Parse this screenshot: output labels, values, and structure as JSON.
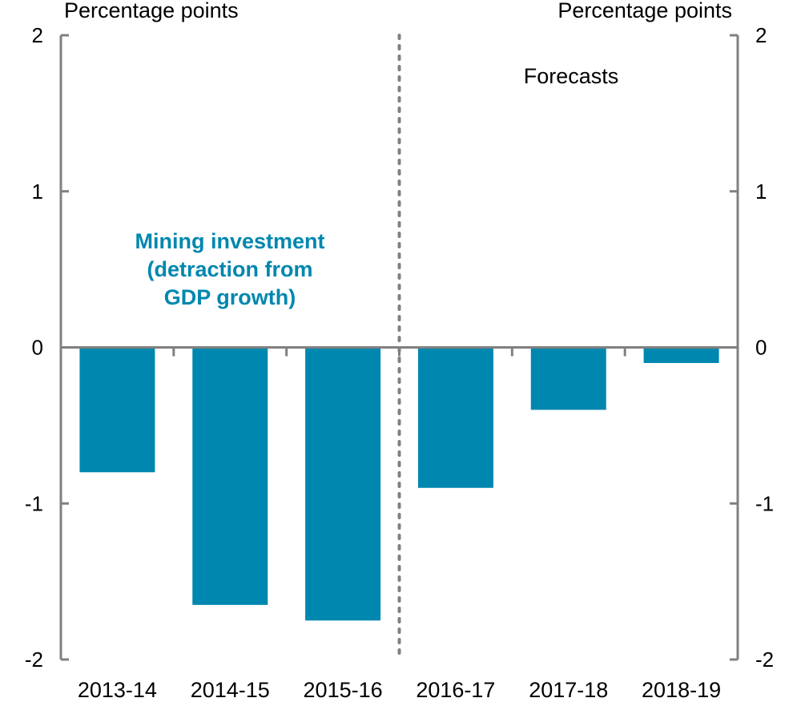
{
  "chart_data": {
    "type": "bar",
    "left_axis_label": "Percentage points",
    "right_axis_label": "Percentage points",
    "categories": [
      "2013-14",
      "2014-15",
      "2015-16",
      "2016-17",
      "2017-18",
      "2018-19"
    ],
    "series": [
      {
        "values": [
          -0.8,
          -1.65,
          -1.75,
          -0.9,
          -0.4,
          -0.1
        ],
        "color": "#0087AF"
      }
    ],
    "ylim": [
      -2,
      2
    ],
    "yticks": [
      "2",
      "1",
      "0",
      "-1",
      "-2"
    ],
    "grid": false,
    "forecast_divider_after": "2015-16",
    "forecast_label": "Forecasts",
    "annotation_lines": [
      "Mining investment",
      "(detraction from",
      "GDP growth)"
    ],
    "annotation_color": "#0087AF",
    "axis_color": "#808080"
  }
}
